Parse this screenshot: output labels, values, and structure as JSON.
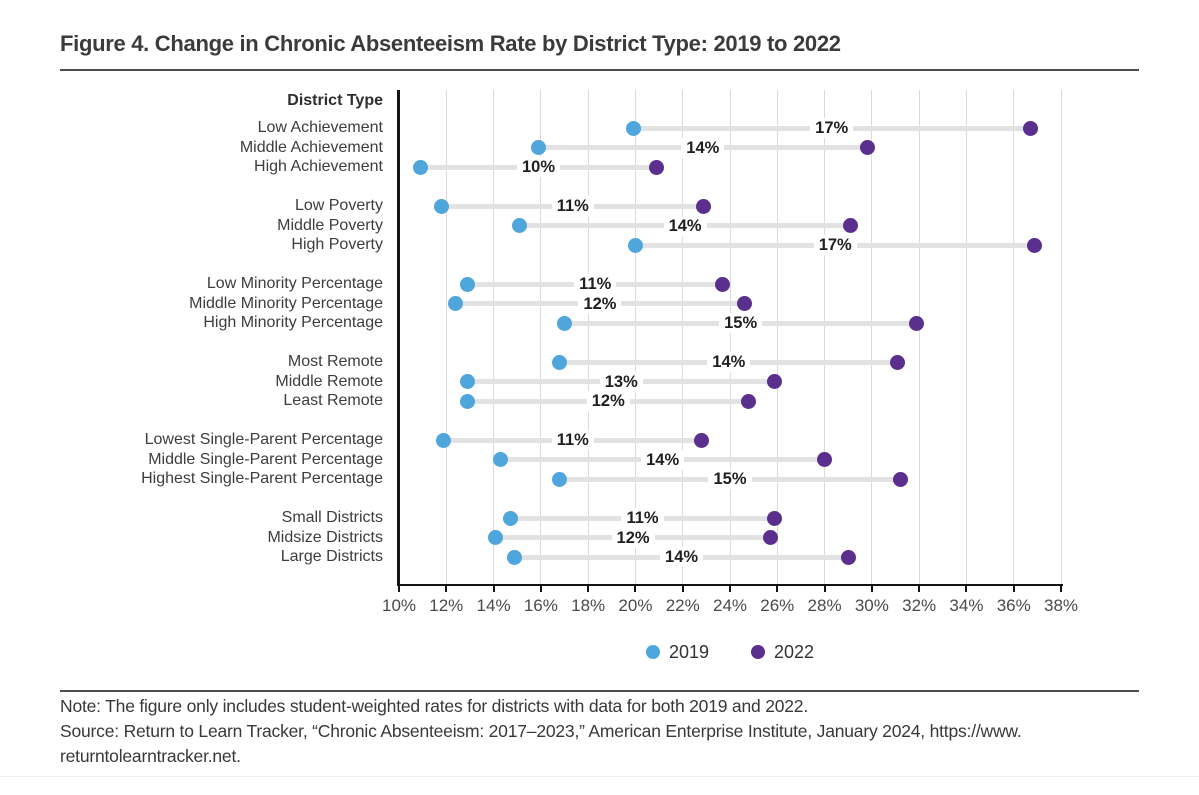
{
  "header": {
    "title": "Figure 4. Change in Chronic Absenteeism Rate by District Type: 2019 to 2022"
  },
  "chart_data": {
    "type": "dumbbell",
    "axis_header": "District Type",
    "x_axis": {
      "min": 10,
      "max": 38,
      "tick_values": [
        10,
        12,
        14,
        16,
        18,
        20,
        22,
        24,
        26,
        28,
        30,
        32,
        34,
        36,
        38
      ],
      "tick_labels": [
        "10%",
        "12%",
        "14%",
        "16%",
        "18%",
        "20%",
        "22%",
        "24%",
        "26%",
        "28%",
        "30%",
        "32%",
        "34%",
        "36%",
        "38%"
      ]
    },
    "series": [
      {
        "name": "2019",
        "color": "#4FA6DC"
      },
      {
        "name": "2022",
        "color": "#5B2F8E"
      }
    ],
    "connector_color": "#e2e2e2",
    "groups": [
      {
        "rows": [
          {
            "label": "Low Achievement",
            "value_2019": 19.9,
            "value_2022": 36.7,
            "change_label": "17%"
          },
          {
            "label": "Middle Achievement",
            "value_2019": 15.9,
            "value_2022": 29.8,
            "change_label": "14%"
          },
          {
            "label": "High Achievement",
            "value_2019": 10.9,
            "value_2022": 20.9,
            "change_label": "10%"
          }
        ]
      },
      {
        "rows": [
          {
            "label": "Low Poverty",
            "value_2019": 11.8,
            "value_2022": 22.9,
            "change_label": "11%"
          },
          {
            "label": "Middle Poverty",
            "value_2019": 15.1,
            "value_2022": 29.1,
            "change_label": "14%"
          },
          {
            "label": "High Poverty",
            "value_2019": 20.0,
            "value_2022": 36.9,
            "change_label": "17%"
          }
        ]
      },
      {
        "rows": [
          {
            "label": "Low Minority Percentage",
            "value_2019": 12.9,
            "value_2022": 23.7,
            "change_label": "11%"
          },
          {
            "label": "Middle Minority Percentage",
            "value_2019": 12.4,
            "value_2022": 24.6,
            "change_label": "12%"
          },
          {
            "label": "High Minority Percentage",
            "value_2019": 17.0,
            "value_2022": 31.9,
            "change_label": "15%"
          }
        ]
      },
      {
        "rows": [
          {
            "label": "Most Remote",
            "value_2019": 16.8,
            "value_2022": 31.1,
            "change_label": "14%"
          },
          {
            "label": "Middle Remote",
            "value_2019": 12.9,
            "value_2022": 25.9,
            "change_label": "13%"
          },
          {
            "label": "Least Remote",
            "value_2019": 12.9,
            "value_2022": 24.8,
            "change_label": "12%"
          }
        ]
      },
      {
        "rows": [
          {
            "label": "Lowest Single-Parent Percentage",
            "value_2019": 11.9,
            "value_2022": 22.8,
            "change_label": "11%"
          },
          {
            "label": "Middle Single-Parent Percentage",
            "value_2019": 14.3,
            "value_2022": 28.0,
            "change_label": "14%"
          },
          {
            "label": "Highest Single-Parent Percentage",
            "value_2019": 16.8,
            "value_2022": 31.2,
            "change_label": "15%"
          }
        ]
      },
      {
        "rows": [
          {
            "label": "Small Districts",
            "value_2019": 14.7,
            "value_2022": 25.9,
            "change_label": "11%"
          },
          {
            "label": "Midsize Districts",
            "value_2019": 14.1,
            "value_2022": 25.7,
            "change_label": "12%"
          },
          {
            "label": "Large Districts",
            "value_2019": 14.9,
            "value_2022": 29.0,
            "change_label": "14%"
          }
        ]
      }
    ]
  },
  "legend": {
    "items": [
      {
        "label": "2019",
        "color": "#4FA6DC"
      },
      {
        "label": "2022",
        "color": "#5B2F8E"
      }
    ]
  },
  "footer": {
    "note": "Note: The figure only includes student-weighted rates for districts with data for both 2019 and 2022.",
    "source_lines": [
      "Source: Return to Learn Tracker, “Chronic Absenteeism: 2017–2023,” American Enterprise Institute, January 2024, https://www.",
      "returntolearntracker.net."
    ]
  }
}
